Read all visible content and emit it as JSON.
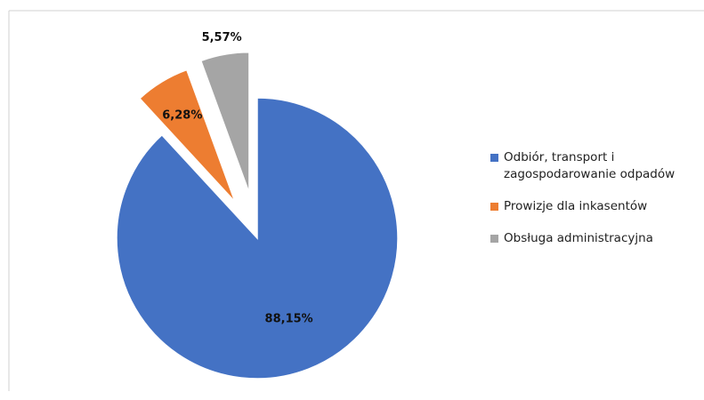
{
  "chart_data": {
    "type": "pie",
    "categories": [
      "Odbiór, transport i zagospodarowanie odpadów",
      "Prowizje dla inkasentów",
      "Obsługa administracyjna"
    ],
    "values": [
      88.15,
      6.28,
      5.57
    ],
    "value_labels": [
      "88,15%",
      "6,28%",
      "5,57%"
    ],
    "colors": [
      "#4472c4",
      "#ed7d31",
      "#a5a5a5"
    ],
    "legend": "right"
  }
}
